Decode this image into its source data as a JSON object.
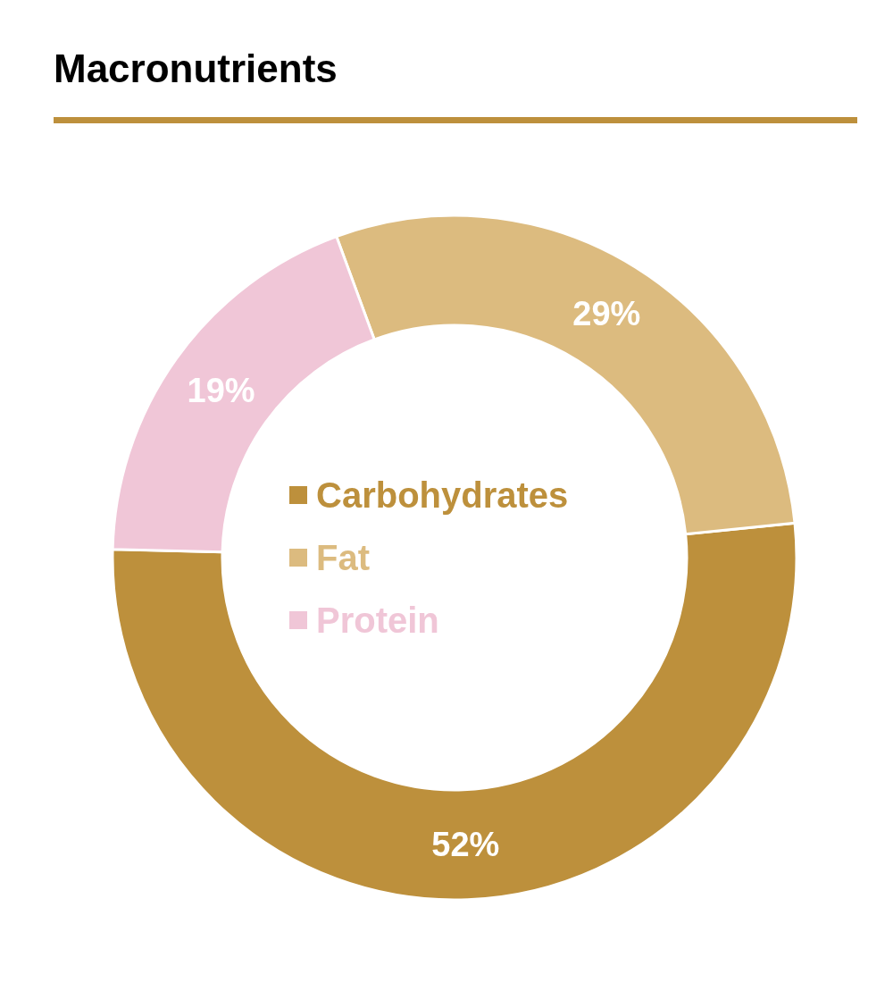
{
  "chart_data": {
    "type": "donut",
    "title": "Macronutrients",
    "categories": [
      "Carbohydrates",
      "Fat",
      "Protein"
    ],
    "values": [
      52,
      29,
      19
    ],
    "colors": [
      "#bd903c",
      "#dcbb7f",
      "#f0c6d7"
    ],
    "value_labels": [
      "52%",
      "29%",
      "19%"
    ],
    "legend": "center"
  }
}
